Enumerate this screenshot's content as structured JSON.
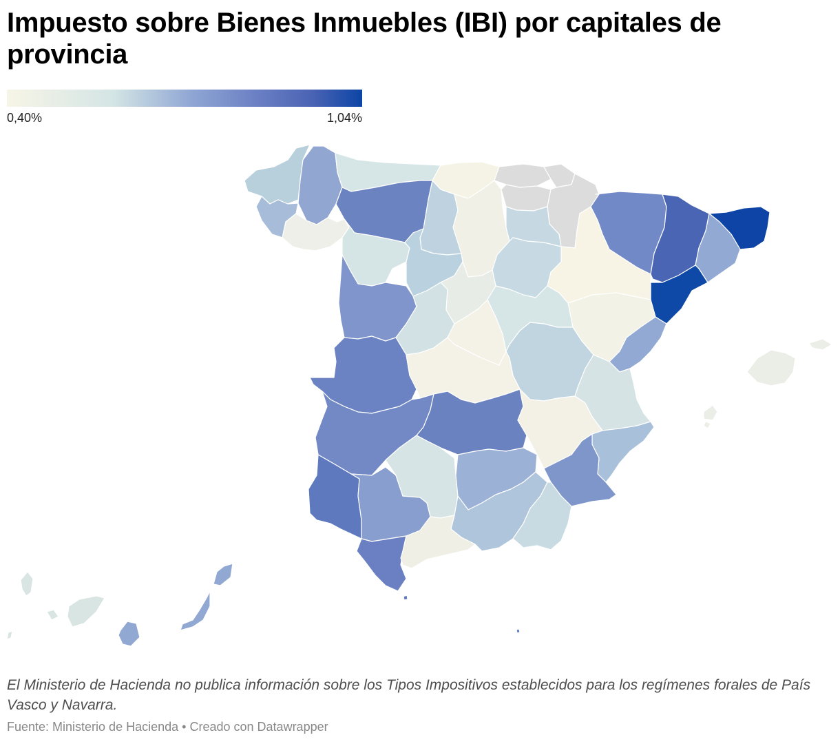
{
  "header": {
    "title": "Impuesto sobre Bienes Inmuebles (IBI) por capitales de provincia"
  },
  "legend": {
    "min_label": "0,40%",
    "max_label": "1,04%",
    "min_value": 0.4,
    "max_value": 1.04,
    "color_scale": [
      "#f7f5e6",
      "#d4e5e5",
      "#8fa6d4",
      "#6b80c4",
      "#4a63b4",
      "#0c45a6"
    ],
    "no_data_color": "#dcdcdc"
  },
  "map": {
    "provinces": [
      {
        "name": "A Coruña",
        "color": "#b8cfdc"
      },
      {
        "name": "Lugo",
        "color": "#91a7d2"
      },
      {
        "name": "Pontevedra",
        "color": "#a6bcd8"
      },
      {
        "name": "Ourense",
        "color": "#eeefe8"
      },
      {
        "name": "Asturias",
        "color": "#d6e5e6"
      },
      {
        "name": "Cantabria",
        "color": "#f5f3e6"
      },
      {
        "name": "León",
        "color": "#6c83c2"
      },
      {
        "name": "Palencia",
        "color": "#bed3df"
      },
      {
        "name": "Burgos",
        "color": "#f0f0e6"
      },
      {
        "name": "Bizkaia",
        "color": "#dcdcdc"
      },
      {
        "name": "Gipuzkoa",
        "color": "#dcdcdc"
      },
      {
        "name": "Araba",
        "color": "#dcdcdc"
      },
      {
        "name": "Navarra",
        "color": "#dcdcdc"
      },
      {
        "name": "La Rioja",
        "color": "#c6d9e2"
      },
      {
        "name": "Huesca",
        "color": "#7189c6"
      },
      {
        "name": "Lleida",
        "color": "#4a65b3"
      },
      {
        "name": "Girona",
        "color": "#0e44a5"
      },
      {
        "name": "Barcelona",
        "color": "#91a9d3"
      },
      {
        "name": "Tarragona",
        "color": "#0f49a8"
      },
      {
        "name": "Zaragoza",
        "color": "#f7f4e5"
      },
      {
        "name": "Zamora",
        "color": "#d5e4e5"
      },
      {
        "name": "Valladolid",
        "color": "#bad2df"
      },
      {
        "name": "Soria",
        "color": "#c7dae3"
      },
      {
        "name": "Teruel",
        "color": "#f3f2e6"
      },
      {
        "name": "Salamanca",
        "color": "#7f95cb"
      },
      {
        "name": "Ávila",
        "color": "#d1e1e4"
      },
      {
        "name": "Segovia",
        "color": "#e8ece6"
      },
      {
        "name": "Madrid",
        "color": "#f4f2e6"
      },
      {
        "name": "Guadalajara",
        "color": "#d6e5e6"
      },
      {
        "name": "Cuenca",
        "color": "#c1d5e0"
      },
      {
        "name": "Castellón",
        "color": "#92a9d3"
      },
      {
        "name": "Valencia",
        "color": "#d6e3e5"
      },
      {
        "name": "Cáceres",
        "color": "#6b83c2"
      },
      {
        "name": "Toledo",
        "color": "#f4f2e6"
      },
      {
        "name": "Badajoz",
        "color": "#7289c5"
      },
      {
        "name": "Ciudad Real",
        "color": "#6b82c1"
      },
      {
        "name": "Albacete",
        "color": "#f3f1e6"
      },
      {
        "name": "Alicante",
        "color": "#a9c0da"
      },
      {
        "name": "Murcia",
        "color": "#7f96cb"
      },
      {
        "name": "Huelva",
        "color": "#5e79bd"
      },
      {
        "name": "Sevilla",
        "color": "#879ecf"
      },
      {
        "name": "Córdoba",
        "color": "#d6e4e5"
      },
      {
        "name": "Jaén",
        "color": "#9cb1d6"
      },
      {
        "name": "Granada",
        "color": "#afc5db"
      },
      {
        "name": "Almería",
        "color": "#c8dbe3"
      },
      {
        "name": "Cádiz",
        "color": "#6a80c2"
      },
      {
        "name": "Málaga",
        "color": "#efefe6"
      },
      {
        "name": "Illes Balears",
        "color": "#eaeee6"
      },
      {
        "name": "Las Palmas",
        "color": "#91a8d3"
      },
      {
        "name": "Santa Cruz de Tenerife",
        "color": "#d9e5e3"
      },
      {
        "name": "Ceuta",
        "color": "#5e79bd"
      },
      {
        "name": "Melilla",
        "color": "#5e79bd"
      }
    ]
  },
  "notes": "El Ministerio de Hacienda no publica información sobre los Tipos Impositivos establecidos para los regímenes forales de País Vasco y Navarra.",
  "footer": {
    "source": "Fuente: Ministerio de Hacienda",
    "separator": "•",
    "credit": "Creado con Datawrapper"
  }
}
